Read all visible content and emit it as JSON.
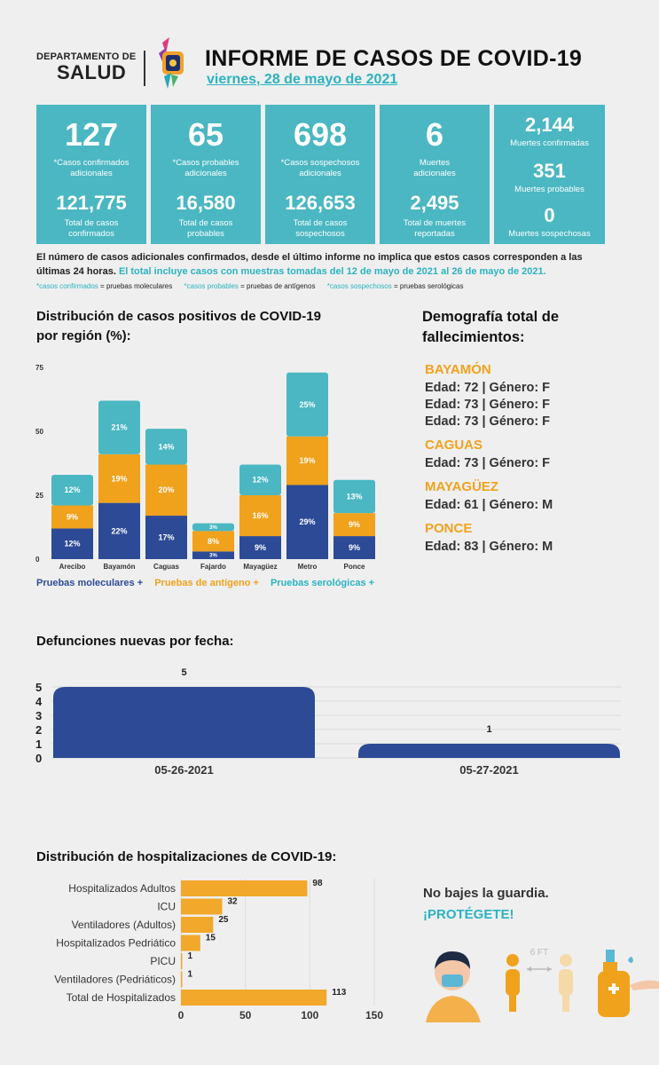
{
  "header": {
    "dept_line1": "DEPARTAMENTO DE",
    "dept_line2": "SALUD",
    "title": "INFORME DE CASOS DE COVID-19",
    "date": "viernes, 28 de mayo de 2021"
  },
  "cards": [
    {
      "big": "127",
      "big_label": "*Casos confirmados adicionales",
      "total": "121,775",
      "total_label": "Total de casos confirmados"
    },
    {
      "big": "65",
      "big_label": "*Casos probables adicionales",
      "total": "16,580",
      "total_label": "Total de casos probables"
    },
    {
      "big": "698",
      "big_label": "*Casos sospechosos adicionales",
      "total": "126,653",
      "total_label": "Total de casos sospechosos"
    },
    {
      "big": "6",
      "big_label": "Muertes adicionales",
      "total": "2,495",
      "total_label": "Total de muertes reportadas"
    }
  ],
  "deaths_card": {
    "confirmed": "2,144",
    "confirmed_label": "Muertes confirmadas",
    "probable": "351",
    "probable_label": "Muertes probables",
    "suspected": "0",
    "suspected_label": "Muertes sospechosas"
  },
  "notes": {
    "line1": "El número de casos adicionales confirmados, desde el último informe no implica que estos casos corresponden a las",
    "line2a": "últimas 24 horas.",
    "line2b": "El total incluye casos con muestras tomadas del 12 de mayo de 2021 al 26 de mayo de 2021.",
    "legend_conf_key": "*casos confirmados",
    "legend_conf_val": "= pruebas moleculares",
    "legend_prob_key": "*casos probables",
    "legend_prob_val": "= pruebas de antígenos",
    "legend_sosp_key": "*casos sospechosos",
    "legend_sosp_val": "= pruebas serológicas"
  },
  "colors": {
    "teal": "#4ab7c2",
    "navy": "#2c4a96",
    "orange": "#f0a21c",
    "hosp": "#f2a82b"
  },
  "region_chart": {
    "title_line1": "Distribución de casos positivos de COVID-19",
    "title_line2": "por región (%):",
    "legend": [
      "Pruebas moleculares +",
      "Pruebas de antígeno +",
      "Pruebas serológicas +"
    ]
  },
  "deaths_chart": {
    "title": "Defunciones nuevas por fecha:"
  },
  "hosp_chart": {
    "title": "Distribución de hospitalizaciones de COVID-19:"
  },
  "chart_data": [
    {
      "type": "bar",
      "stacked": true,
      "categories": [
        "Arecibo",
        "Bayamón",
        "Caguas",
        "Fajardo",
        "Mayagüez",
        "Metro",
        "Ponce"
      ],
      "series": [
        {
          "name": "Pruebas moleculares +",
          "values": [
            12,
            22,
            17,
            3,
            9,
            29,
            9
          ],
          "labels": [
            "12%",
            "22%",
            "17%",
            "3%",
            "9%",
            "29%",
            "9%"
          ]
        },
        {
          "name": "Pruebas de antígeno +",
          "values": [
            9,
            19,
            20,
            8,
            16,
            19,
            9
          ],
          "labels": [
            "9%",
            "19%",
            "20%",
            "8%",
            "16%",
            "19%",
            "9%"
          ]
        },
        {
          "name": "Pruebas serológicas +",
          "values": [
            12,
            21,
            14,
            3,
            12,
            25,
            13
          ],
          "labels": [
            "12%",
            "21%",
            "14%",
            "3%",
            "12%",
            "25%",
            "13%"
          ]
        }
      ],
      "yticks": [
        "0",
        "25",
        "50",
        "75"
      ],
      "ylim": [
        0,
        75
      ]
    },
    {
      "type": "bar",
      "categories": [
        "05-26-2021",
        "05-27-2021"
      ],
      "values": [
        5,
        1
      ],
      "yticks": [
        "0",
        "1",
        "2",
        "3",
        "4",
        "5"
      ],
      "ylim": [
        0,
        5
      ]
    },
    {
      "type": "bar",
      "orientation": "horizontal",
      "categories": [
        "Hospitalizados Adultos",
        "ICU",
        "Ventiladores (Adultos)",
        "Hospitalizados Pedriático",
        "PICU",
        "Ventiladores (Pedriáticos)",
        "Total de Hospitalizados"
      ],
      "values": [
        98,
        32,
        25,
        15,
        1,
        1,
        113
      ],
      "xticks": [
        "0",
        "50",
        "100",
        "150"
      ],
      "xlim": [
        0,
        150
      ]
    }
  ],
  "demographics": {
    "title_line1": "Demografía total de",
    "title_line2": "fallecimientos:",
    "groups": [
      {
        "region": "BAYAMÓN",
        "rows": [
          "Edad: 72 | Género: F",
          "Edad: 73 | Género: F",
          "Edad: 73 | Género: F"
        ]
      },
      {
        "region": "CAGUAS",
        "rows": [
          "Edad: 73 | Género: F"
        ]
      },
      {
        "region": "MAYAGÜEZ",
        "rows": [
          "Edad: 61 | Género: M"
        ]
      },
      {
        "region": "PONCE",
        "rows": [
          "Edad: 83 | Género: M"
        ]
      }
    ]
  },
  "slogan": {
    "line1": "No bajes la guardia.",
    "line2": "¡PROTÉGETE!",
    "distance": "6 FT"
  }
}
